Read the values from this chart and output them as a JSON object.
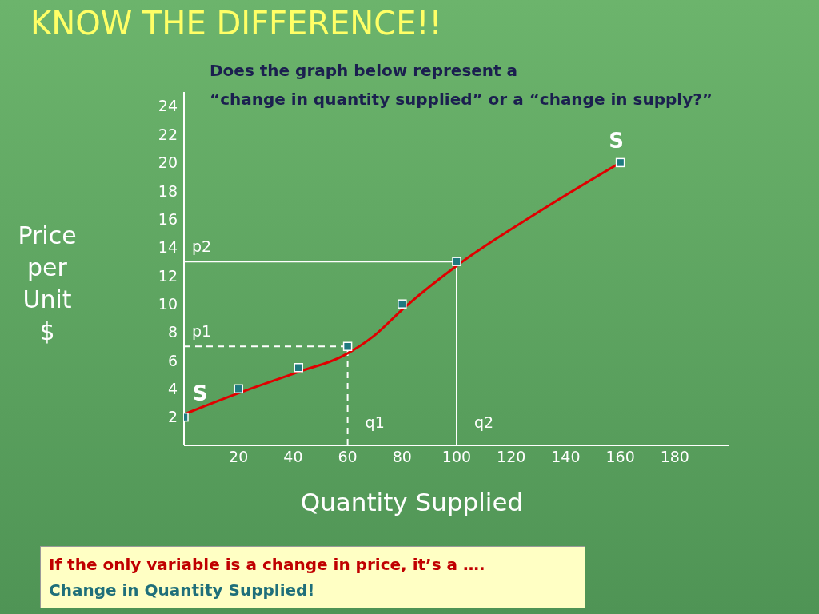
{
  "chart_data": {
    "type": "line",
    "title": "KNOW THE DIFFERENCE!!",
    "subtitle": "Does the graph below represent a\n“change in quantity supplied” or a “change in supply?”",
    "xlabel": "Quantity Supplied",
    "ylabel": "Price\nper\nUnit\n$",
    "series": [
      {
        "color": "#e00000",
        "x": [
          0,
          20,
          42,
          58,
          70,
          80,
          100,
          130,
          160
        ],
        "values": [
          2.2,
          3.7,
          5.2,
          6.3,
          7.8,
          9.6,
          12.7,
          16.5,
          20
        ],
        "marker": "none",
        "line_style": "solid"
      },
      {
        "type": "scatter",
        "color": "#1f7a80",
        "x": [
          0,
          20,
          42,
          60,
          80,
          100,
          160
        ],
        "values": [
          2,
          4,
          5.5,
          7,
          10,
          13,
          20
        ],
        "marker": "square"
      }
    ],
    "xlim": [
      0,
      200
    ],
    "xticks": [
      20,
      40,
      60,
      80,
      100,
      120,
      140,
      160,
      180
    ],
    "ylim": [
      0,
      25
    ],
    "yticks": [
      2,
      4,
      6,
      8,
      10,
      12,
      14,
      16,
      18,
      20,
      22,
      24
    ],
    "grid": false,
    "ref_lines": [
      {
        "axis": "y",
        "value": 7,
        "label": "p1",
        "color": "#ffffff",
        "line_style": "dashed"
      },
      {
        "axis": "x",
        "value": 60,
        "label": "q1",
        "color": "#ffffff",
        "line_style": "dashed"
      },
      {
        "axis": "y",
        "value": 13,
        "label": "p2",
        "color": "#ffffff",
        "line_style": "solid"
      },
      {
        "axis": "x",
        "value": 100,
        "label": "q2",
        "color": "#ffffff",
        "line_style": "solid"
      }
    ],
    "annotations": [
      {
        "text": "S",
        "x": 0,
        "y": 2
      },
      {
        "text": "S",
        "x": 160,
        "y": 20
      },
      "If the only variable is a change in price, it’s a ….",
      "Change in Quantity Supplied!"
    ]
  }
}
